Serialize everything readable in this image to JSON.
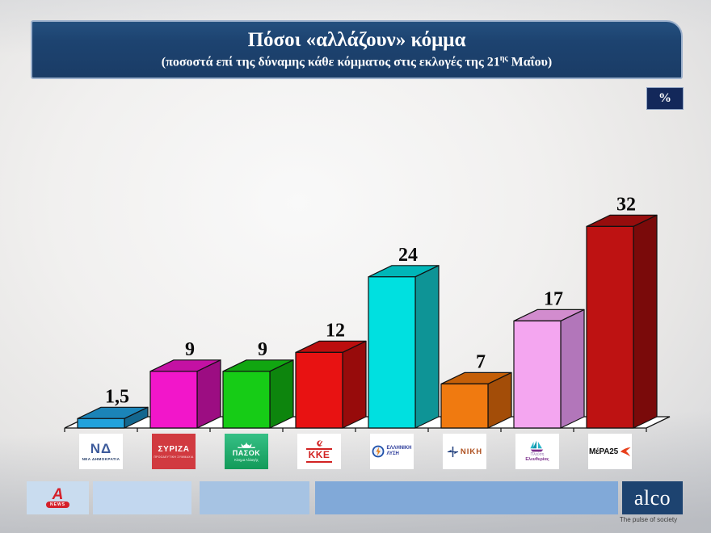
{
  "title": {
    "heading": "Πόσοι «αλλάζουν» κόμμα",
    "subtitle_prefix": "(ποσοστά επί της δύναμης κάθε κόμματος στις εκλογές της 21",
    "subtitle_sup": "ης",
    "subtitle_suffix": " Μαΐου)"
  },
  "unit_badge": "%",
  "chart_data": {
    "type": "bar",
    "style": "3d",
    "title": "Πόσοι «αλλάζουν» κόμμα",
    "subtitle": "(ποσοστά επί της δύναμης κάθε κόμματος στις εκλογές της 21ης Μαΐου)",
    "xlabel": "",
    "ylabel": "%",
    "ylim": [
      0,
      35
    ],
    "grid": false,
    "legend": false,
    "categories": [
      "ΝΕΑ ΔΗΜΟΚΡΑΤΙΑ",
      "ΣΥΡΙΖΑ",
      "ΠΑΣΟΚ",
      "ΚΚΕ",
      "ΕΛΛΗΝΙΚΗ ΛΥΣΗ",
      "ΝΙΚΗ",
      "ΠΛΕΥΣΗ ΕΛΕΥΘΕΡΙΑΣ",
      "ΜέΡΑ25"
    ],
    "values": [
      1.5,
      9,
      9,
      12,
      24,
      7,
      17,
      32
    ],
    "bars": [
      {
        "category": "ΝΕΑ ΔΗΜΟΚΡΑΤΙΑ",
        "value": 1.5,
        "label": "1,5",
        "front": "#22a2dc",
        "top": "#1b84b8",
        "side": "#14678f"
      },
      {
        "category": "ΣΥΡΙΖΑ",
        "value": 9,
        "label": "9",
        "front": "#f216ca",
        "top": "#c411a3",
        "side": "#9c0d82"
      },
      {
        "category": "ΠΑΣΟΚ",
        "value": 9,
        "label": "9",
        "front": "#16cc16",
        "top": "#11a611",
        "side": "#0d850d"
      },
      {
        "category": "ΚΚΕ",
        "value": 12,
        "label": "12",
        "front": "#e81212",
        "top": "#bc0e0e",
        "side": "#970b0b"
      },
      {
        "category": "ΕΛΛΗΝΙΚΗ ΛΥΣΗ",
        "value": 24,
        "label": "24",
        "front": "#00e0e0",
        "top": "#00b6b8",
        "side": "#0e9496"
      },
      {
        "category": "ΝΙΚΗ",
        "value": 7,
        "label": "7",
        "front": "#f07a10",
        "top": "#c45f08",
        "side": "#a34d08"
      },
      {
        "category": "ΠΛΕΥΣΗ ΕΛΕΥΘΕΡΙΑΣ",
        "value": 17,
        "label": "17",
        "front": "#f4a6f0",
        "top": "#d28cce",
        "side": "#b276ba"
      },
      {
        "category": "ΜέΡΑ25",
        "value": 32,
        "label": "32",
        "front": "#be1212",
        "top": "#960d0d",
        "side": "#7a0a0a"
      }
    ],
    "floor_color": "#ffffff",
    "outline_color": "#111111"
  },
  "parties": [
    {
      "mark": "ΝΔ",
      "name": "ΝΕΑ ΔΗΜΟΚΡΑΤΙΑ"
    },
    {
      "name": "ΣΥΡΙΖΑ",
      "sub": "ΠΡΟΟΔΕΥΤΙΚΗ ΣΥΜΜΑΧΙΑ"
    },
    {
      "name": "ΠΑΣΟΚ",
      "sub": "Κίνημα Αλλαγής"
    },
    {
      "name": "ΚΚΕ"
    },
    {
      "name": "ΕΛΛΗΝΙΚΗ",
      "name2": "ΛΥΣΗ"
    },
    {
      "name": "ΝΙΚΗ"
    },
    {
      "name": "Πλεύση",
      "name2": "Ελευθερίας"
    },
    {
      "name": "ΜέΡΑ25"
    }
  ],
  "footer": {
    "news_label": "NEWS",
    "alpha_letter": "A",
    "brand": "alco",
    "tagline": "The pulse of society"
  }
}
